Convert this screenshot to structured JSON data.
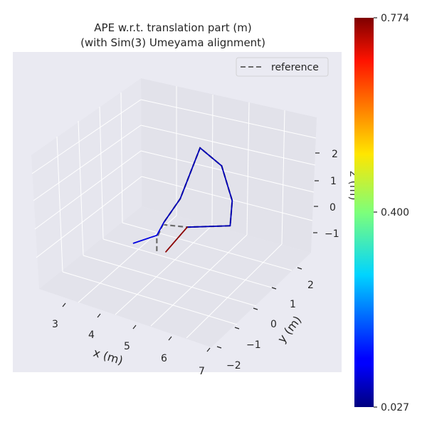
{
  "chart_data": {
    "type": "line",
    "title": "APE w.r.t. translation part (m)",
    "subtitle": "(with Sim(3) Umeyama alignment)",
    "xlabel": "x (m)",
    "ylabel": "y (m)",
    "zlabel": "z (m)",
    "x_ticks": [
      "3",
      "4",
      "5",
      "6",
      "7"
    ],
    "y_ticks": [
      "−2",
      "−1",
      "0",
      "1",
      "2"
    ],
    "z_ticks": [
      "−1",
      "0",
      "1",
      "2"
    ],
    "legend": [
      {
        "name": "reference",
        "style": "dashed",
        "color": "#6b6b6b",
        "position": "top-right"
      }
    ],
    "colorbar": {
      "min_label": "0.027",
      "mid_label": "0.400",
      "max_label": "0.774",
      "colormap": "jet"
    },
    "series": [
      {
        "name": "reference",
        "style": "dashed",
        "color": "#6b6b6b",
        "points": [
          [
            4.9,
            -0.2,
            -1.5
          ],
          [
            4.9,
            -0.2,
            -1.0
          ],
          [
            5.0,
            0.0,
            -0.5
          ],
          [
            5.3,
            0.3,
            0.3
          ],
          [
            5.6,
            0.8,
            2.0
          ],
          [
            6.0,
            1.2,
            1.2
          ],
          [
            6.4,
            1.0,
            0.2
          ],
          [
            6.6,
            0.5,
            -0.3
          ],
          [
            5.6,
            0.1,
            -0.5
          ],
          [
            5.0,
            0.0,
            -0.6
          ]
        ]
      },
      {
        "name": "",
        "style": "solid",
        "color_by_error": true,
        "points": [
          [
            4.4,
            -0.5,
            -1.2
          ],
          [
            4.9,
            -0.2,
            -0.9
          ],
          [
            5.0,
            0.0,
            -0.5
          ],
          [
            5.3,
            0.3,
            0.3
          ],
          [
            5.6,
            0.8,
            2.0
          ],
          [
            6.0,
            1.2,
            1.2
          ],
          [
            6.4,
            1.0,
            0.2
          ],
          [
            6.6,
            0.5,
            -0.3
          ],
          [
            5.6,
            0.1,
            -0.5
          ],
          [
            5.0,
            0.1,
            -1.7
          ]
        ]
      }
    ]
  }
}
